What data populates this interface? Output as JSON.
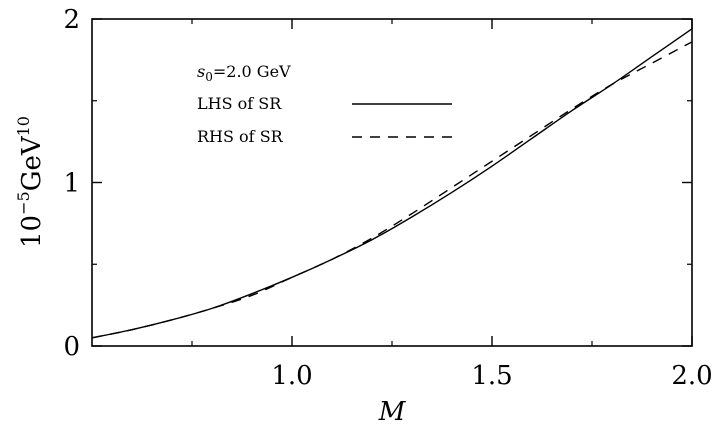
{
  "chart_data": {
    "type": "line",
    "xlabel": "M",
    "ylabel": {
      "base": "10",
      "exp": "−5",
      "unit": "GeV",
      "unit_exp": "10"
    },
    "xlim": [
      0.5,
      2.0
    ],
    "ylim": [
      0,
      2
    ],
    "x_ticks": [
      1.0,
      1.5,
      2.0
    ],
    "x_tick_labels": [
      "1.0",
      "1.5",
      "2.0"
    ],
    "y_ticks": [
      0,
      1,
      2
    ],
    "y_tick_labels": [
      "0",
      "1",
      "2"
    ],
    "x_minor_ticks": [
      0.75,
      1.25,
      1.75
    ],
    "y_minor_ticks": [
      0.5,
      1.5
    ],
    "grid": false,
    "legend": {
      "placement": "top-left",
      "title_prefix": "s",
      "title_sub": "0",
      "title_rest": "=2.0 GeV"
    },
    "series": [
      {
        "name": "LHS of SR",
        "style": "solid",
        "color": "#000000",
        "x": [
          0.5,
          0.6,
          0.7,
          0.8,
          0.9,
          1.0,
          1.1,
          1.2,
          1.3,
          1.4,
          1.5,
          1.6,
          1.7,
          1.8,
          1.9,
          2.0
        ],
        "y": [
          0.05,
          0.1,
          0.16,
          0.23,
          0.32,
          0.42,
          0.53,
          0.65,
          0.79,
          0.94,
          1.1,
          1.27,
          1.44,
          1.6,
          1.77,
          1.94
        ]
      },
      {
        "name": "RHS of SR",
        "style": "dashed",
        "color": "#000000",
        "x": [
          0.5,
          0.6,
          0.7,
          0.8,
          0.9,
          1.0,
          1.1,
          1.2,
          1.3,
          1.4,
          1.5,
          1.6,
          1.7,
          1.8,
          1.9,
          2.0
        ],
        "y": [
          0.05,
          0.1,
          0.16,
          0.23,
          0.31,
          0.42,
          0.53,
          0.66,
          0.81,
          0.97,
          1.13,
          1.29,
          1.45,
          1.6,
          1.73,
          1.86
        ]
      }
    ]
  }
}
